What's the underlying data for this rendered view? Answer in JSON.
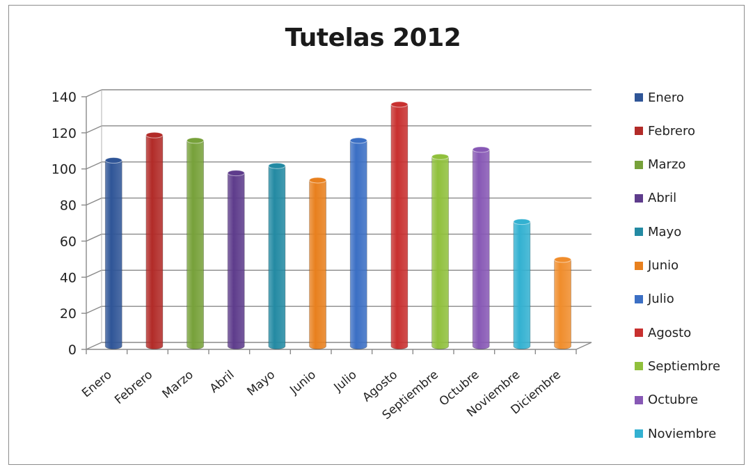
{
  "chart_data": {
    "type": "bar",
    "title": "Tutelas 2012",
    "xlabel": "",
    "ylabel": "",
    "categories": [
      "Enero",
      "Febrero",
      "Marzo",
      "Abril",
      "Mayo",
      "Junio",
      "Julio",
      "Agosto",
      "Septiembre",
      "Octubre",
      "Noviembre",
      "Diciembre"
    ],
    "values": [
      103,
      117,
      114,
      96,
      100,
      92,
      114,
      134,
      105,
      109,
      69,
      48
    ],
    "colors": [
      "#2f5597",
      "#b22b28",
      "#77a13a",
      "#5e3c8c",
      "#238aa3",
      "#e8801e",
      "#3b6fc4",
      "#c8302f",
      "#90c03c",
      "#8758b5",
      "#33b1d1",
      "#f08d2c"
    ],
    "ylim": [
      0,
      140
    ],
    "yticks": [
      0,
      20,
      40,
      60,
      80,
      100,
      120,
      140
    ],
    "grid": true,
    "legend_position": "right",
    "legend_entries": [
      "Enero",
      "Febrero",
      "Marzo",
      "Abril",
      "Mayo",
      "Junio",
      "Julio",
      "Agosto",
      "Septiembre",
      "Octubre",
      "Noviembre"
    ]
  }
}
